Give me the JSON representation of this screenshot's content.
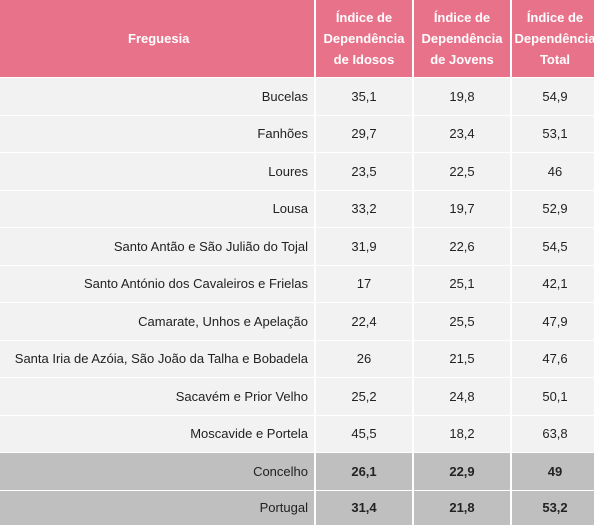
{
  "table": {
    "header": [
      [
        "Freguesia"
      ],
      [
        "Índice de",
        "Dependência",
        "de Idosos"
      ],
      [
        "Índice de",
        "Dependência",
        "de Jovens"
      ],
      [
        "Índice de",
        "Dependência",
        "Total"
      ]
    ],
    "rows": [
      [
        "Bucelas",
        "35,1",
        "19,8",
        "54,9"
      ],
      [
        "Fanhões",
        "29,7",
        "23,4",
        "53,1"
      ],
      [
        "Loures",
        "23,5",
        "22,5",
        "46"
      ],
      [
        "Lousa",
        "33,2",
        "19,7",
        "52,9"
      ],
      [
        "Santo Antão e São Julião do Tojal",
        "31,9",
        "22,6",
        "54,5"
      ],
      [
        "Santo António dos Cavaleiros e Frielas",
        "17",
        "25,1",
        "42,1"
      ],
      [
        "Camarate, Unhos e Apelação",
        "22,4",
        "25,5",
        "47,9"
      ],
      [
        "Santa Iria de Azóia, São João da Talha e Bobadela",
        "26",
        "21,5",
        "47,6"
      ],
      [
        "Sacavém e Prior Velho",
        "25,2",
        "24,8",
        "50,1"
      ],
      [
        "Moscavide e Portela",
        "45,5",
        "18,2",
        "63,8"
      ]
    ],
    "totals": [
      [
        "Concelho",
        "26,1",
        "22,9",
        "49"
      ],
      [
        "Portugal",
        "31,4",
        "21,8",
        "53,2"
      ]
    ]
  }
}
